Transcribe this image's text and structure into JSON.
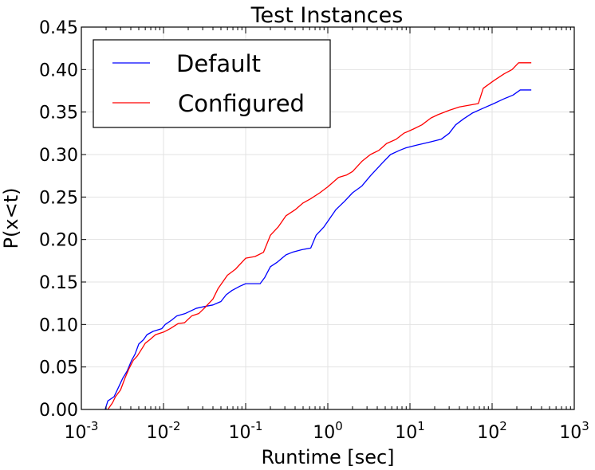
{
  "chart_data": {
    "type": "line",
    "title": "Test Instances",
    "xlabel": "Runtime [sec]",
    "ylabel": "P(x<t)",
    "xscale": "log",
    "xlim": [
      0.001,
      1000
    ],
    "ylim": [
      0,
      0.45
    ],
    "grid": true,
    "legend_position": "top-left",
    "x_ticks": [
      {
        "value": 0.001,
        "base": "10",
        "exp": "-3"
      },
      {
        "value": 0.01,
        "base": "10",
        "exp": "-2"
      },
      {
        "value": 0.1,
        "base": "10",
        "exp": "-1"
      },
      {
        "value": 1,
        "base": "10",
        "exp": "0"
      },
      {
        "value": 10,
        "base": "10",
        "exp": "1"
      },
      {
        "value": 100,
        "base": "10",
        "exp": "2"
      },
      {
        "value": 1000,
        "base": "10",
        "exp": "3"
      }
    ],
    "y_ticks": [
      {
        "value": 0,
        "label": "0.00"
      },
      {
        "value": 0.05,
        "label": "0.05"
      },
      {
        "value": 0.1,
        "label": "0.10"
      },
      {
        "value": 0.15,
        "label": "0.15"
      },
      {
        "value": 0.2,
        "label": "0.20"
      },
      {
        "value": 0.25,
        "label": "0.25"
      },
      {
        "value": 0.3,
        "label": "0.30"
      },
      {
        "value": 0.35,
        "label": "0.35"
      },
      {
        "value": 0.4,
        "label": "0.40"
      },
      {
        "value": 0.45,
        "label": "0.45"
      }
    ],
    "series": [
      {
        "name": "Default",
        "color": "#0000ff",
        "points": [
          [
            0.00195,
            0.0
          ],
          [
            0.0021,
            0.01
          ],
          [
            0.0025,
            0.015
          ],
          [
            0.0028,
            0.025
          ],
          [
            0.0032,
            0.037
          ],
          [
            0.0036,
            0.045
          ],
          [
            0.0041,
            0.058
          ],
          [
            0.0045,
            0.065
          ],
          [
            0.005,
            0.077
          ],
          [
            0.0057,
            0.082
          ],
          [
            0.0063,
            0.088
          ],
          [
            0.0075,
            0.092
          ],
          [
            0.0095,
            0.095
          ],
          [
            0.0105,
            0.1
          ],
          [
            0.0125,
            0.105
          ],
          [
            0.0145,
            0.11
          ],
          [
            0.0185,
            0.113
          ],
          [
            0.025,
            0.119
          ],
          [
            0.031,
            0.121
          ],
          [
            0.04,
            0.123
          ],
          [
            0.05,
            0.127
          ],
          [
            0.058,
            0.135
          ],
          [
            0.068,
            0.14
          ],
          [
            0.085,
            0.145
          ],
          [
            0.1,
            0.148
          ],
          [
            0.15,
            0.148
          ],
          [
            0.17,
            0.155
          ],
          [
            0.2,
            0.168
          ],
          [
            0.24,
            0.173
          ],
          [
            0.31,
            0.182
          ],
          [
            0.37,
            0.185
          ],
          [
            0.48,
            0.188
          ],
          [
            0.62,
            0.19
          ],
          [
            0.72,
            0.205
          ],
          [
            0.9,
            0.215
          ],
          [
            1.25,
            0.235
          ],
          [
            1.6,
            0.245
          ],
          [
            2.0,
            0.255
          ],
          [
            2.6,
            0.263
          ],
          [
            3.3,
            0.275
          ],
          [
            4.6,
            0.29
          ],
          [
            5.8,
            0.3
          ],
          [
            7.5,
            0.305
          ],
          [
            9.0,
            0.308
          ],
          [
            12.0,
            0.311
          ],
          [
            18.0,
            0.315
          ],
          [
            24.0,
            0.318
          ],
          [
            30.0,
            0.325
          ],
          [
            36.0,
            0.335
          ],
          [
            45.0,
            0.342
          ],
          [
            58.0,
            0.349
          ],
          [
            80.0,
            0.355
          ],
          [
            105.0,
            0.36
          ],
          [
            135.0,
            0.365
          ],
          [
            180.0,
            0.37
          ],
          [
            220.0,
            0.376
          ],
          [
            300.0,
            0.376
          ]
        ]
      },
      {
        "name": "Configured",
        "color": "#ff0000",
        "points": [
          [
            0.0021,
            0.0
          ],
          [
            0.0024,
            0.008
          ],
          [
            0.0026,
            0.015
          ],
          [
            0.003,
            0.023
          ],
          [
            0.0034,
            0.037
          ],
          [
            0.0038,
            0.048
          ],
          [
            0.0043,
            0.058
          ],
          [
            0.0048,
            0.063
          ],
          [
            0.0055,
            0.072
          ],
          [
            0.006,
            0.078
          ],
          [
            0.0068,
            0.082
          ],
          [
            0.008,
            0.088
          ],
          [
            0.01,
            0.091
          ],
          [
            0.012,
            0.095
          ],
          [
            0.015,
            0.101
          ],
          [
            0.018,
            0.102
          ],
          [
            0.022,
            0.11
          ],
          [
            0.027,
            0.113
          ],
          [
            0.032,
            0.12
          ],
          [
            0.04,
            0.13
          ],
          [
            0.046,
            0.142
          ],
          [
            0.06,
            0.158
          ],
          [
            0.075,
            0.165
          ],
          [
            0.1,
            0.178
          ],
          [
            0.13,
            0.18
          ],
          [
            0.165,
            0.185
          ],
          [
            0.2,
            0.205
          ],
          [
            0.25,
            0.215
          ],
          [
            0.31,
            0.228
          ],
          [
            0.4,
            0.235
          ],
          [
            0.5,
            0.243
          ],
          [
            0.62,
            0.248
          ],
          [
            0.8,
            0.255
          ],
          [
            1.0,
            0.262
          ],
          [
            1.35,
            0.273
          ],
          [
            1.7,
            0.276
          ],
          [
            2.0,
            0.28
          ],
          [
            2.6,
            0.292
          ],
          [
            3.3,
            0.3
          ],
          [
            4.2,
            0.305
          ],
          [
            5.2,
            0.313
          ],
          [
            6.8,
            0.318
          ],
          [
            8.4,
            0.325
          ],
          [
            11.0,
            0.33
          ],
          [
            14.0,
            0.335
          ],
          [
            18.0,
            0.343
          ],
          [
            22.0,
            0.347
          ],
          [
            30.0,
            0.352
          ],
          [
            40.0,
            0.356
          ],
          [
            68.0,
            0.36
          ],
          [
            78.0,
            0.378
          ],
          [
            105.0,
            0.387
          ],
          [
            140.0,
            0.395
          ],
          [
            175.0,
            0.4
          ],
          [
            210.0,
            0.408
          ],
          [
            300.0,
            0.408
          ]
        ]
      }
    ]
  }
}
